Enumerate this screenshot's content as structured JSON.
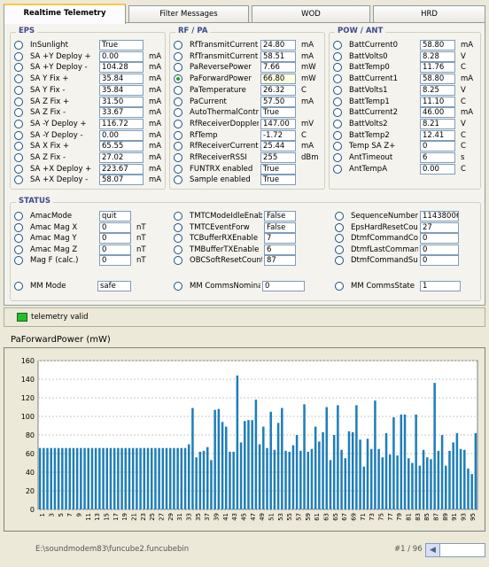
{
  "tabs": [
    {
      "label": "Realtime Telemetry",
      "active": true
    },
    {
      "label": "Filter Messages",
      "active": false
    },
    {
      "label": "WOD",
      "active": false
    },
    {
      "label": "HRD",
      "active": false
    }
  ],
  "eps": {
    "title": "EPS",
    "rows": [
      {
        "label": "InSunlight",
        "value": "True",
        "unit": ""
      },
      {
        "label": "SA +Y Deploy +",
        "value": "0.00",
        "unit": "mA"
      },
      {
        "label": "SA +Y Deploy -",
        "value": "104.28",
        "unit": "mA"
      },
      {
        "label": "SA Y Fix +",
        "value": "35.84",
        "unit": "mA"
      },
      {
        "label": "SA Y Fix -",
        "value": "35.84",
        "unit": "mA"
      },
      {
        "label": "SA Z Fix +",
        "value": "31.50",
        "unit": "mA"
      },
      {
        "label": "SA Z Fix -",
        "value": "33.67",
        "unit": "mA"
      },
      {
        "label": "SA -Y Deploy +",
        "value": "116.72",
        "unit": "mA"
      },
      {
        "label": "SA -Y Deploy -",
        "value": "0.00",
        "unit": "mA"
      },
      {
        "label": "SA X Fix +",
        "value": "65.55",
        "unit": "mA"
      },
      {
        "label": "SA Z Fix -",
        "value": "27.02",
        "unit": "mA"
      },
      {
        "label": "SA +X Deploy +",
        "value": "223.67",
        "unit": "mA"
      },
      {
        "label": "SA +X Deploy -",
        "value": "58.07",
        "unit": "mA"
      }
    ]
  },
  "rfpa": {
    "title": "RF / PA",
    "rows": [
      {
        "label": "RfTransmitCurrent3",
        "value": "24.80",
        "unit": "mA"
      },
      {
        "label": "RfTransmitCurrent5",
        "value": "58.51",
        "unit": "mA"
      },
      {
        "label": "PaReversePower",
        "value": "7.66",
        "unit": "mW"
      },
      {
        "label": "PaForwardPower",
        "value": "66.80",
        "unit": "mW",
        "selected": true
      },
      {
        "label": "PaTemperature",
        "value": "26.32",
        "unit": "C"
      },
      {
        "label": "PaCurrent",
        "value": "57.50",
        "unit": "mA"
      },
      {
        "label": "AutoThermalControl",
        "value": "True",
        "unit": ""
      },
      {
        "label": "RfReceiverDoppler",
        "value": "147.00",
        "unit": "mV"
      },
      {
        "label": "RfTemp",
        "value": "-1.72",
        "unit": "C"
      },
      {
        "label": "RfReceiverCurrent",
        "value": "25.44",
        "unit": "mA"
      },
      {
        "label": "RfReceiverRSSI",
        "value": "255",
        "unit": "dBm"
      },
      {
        "label": "FUNTRX enabled",
        "value": "True",
        "unit": ""
      },
      {
        "label": "Sample enabled",
        "value": "True",
        "unit": ""
      }
    ]
  },
  "powant": {
    "title": "POW / ANT",
    "rows": [
      {
        "label": "BattCurrent0",
        "value": "58.80",
        "unit": "mA"
      },
      {
        "label": "BattVolts0",
        "value": "8.28",
        "unit": "V"
      },
      {
        "label": "BattTemp0",
        "value": "11.76",
        "unit": "C"
      },
      {
        "label": "BattCurrent1",
        "value": "58.80",
        "unit": "mA"
      },
      {
        "label": "BattVolts1",
        "value": "8.25",
        "unit": "V"
      },
      {
        "label": "BattTemp1",
        "value": "11.10",
        "unit": "C"
      },
      {
        "label": "BattCurrent2",
        "value": "46.00",
        "unit": "mA"
      },
      {
        "label": "BattVolts2",
        "value": "8.21",
        "unit": "V"
      },
      {
        "label": "BattTemp2",
        "value": "12.41",
        "unit": "C"
      },
      {
        "label": "Temp SA Z+",
        "value": "0",
        "unit": "C"
      },
      {
        "label": "AntTimeout",
        "value": "6",
        "unit": "s"
      },
      {
        "label": "AntTempA",
        "value": "0.00",
        "unit": "C"
      }
    ]
  },
  "status": {
    "title": "STATUS",
    "col1": [
      {
        "label": "AmacMode",
        "value": "quit",
        "unit": ""
      },
      {
        "label": "Amac Mag X",
        "value": "0",
        "unit": "nT"
      },
      {
        "label": "Amac Mag Y",
        "value": "0",
        "unit": "nT"
      },
      {
        "label": "Amac Mag Z",
        "value": "0",
        "unit": "nT"
      },
      {
        "label": "Mag F (calc.)",
        "value": "0",
        "unit": "nT"
      }
    ],
    "col2": [
      {
        "label": "TMTCModeIdleEnab",
        "value": "False",
        "unit": ""
      },
      {
        "label": "TMTCEventForw",
        "value": "False",
        "unit": ""
      },
      {
        "label": "TCBufferRXEnable",
        "value": "7",
        "unit": ""
      },
      {
        "label": "TMBufferTXEnable",
        "value": "6",
        "unit": ""
      },
      {
        "label": "OBCSoftResetCount",
        "value": "87",
        "unit": ""
      }
    ],
    "col3": [
      {
        "label": "SequenceNumber",
        "value": "11438006",
        "unit": ""
      },
      {
        "label": "EpsHardResetCount",
        "value": "27",
        "unit": ""
      },
      {
        "label": "DtmfCommandCount",
        "value": "0",
        "unit": ""
      },
      {
        "label": "DtmfLastCommand",
        "value": "0",
        "unit": ""
      },
      {
        "label": "DtmfCommandSucce",
        "value": "0",
        "unit": ""
      }
    ],
    "mm": [
      {
        "label": "MM Mode",
        "value": "safe"
      },
      {
        "label": "MM CommsNominal",
        "value": "0"
      },
      {
        "label": "MM CommsState",
        "value": "1"
      }
    ]
  },
  "indicator": {
    "label": "telemetry valid",
    "color": "#22c02a"
  },
  "chart_title": "PaForwardPower (mW)",
  "chart_data": {
    "type": "bar",
    "title": "PaForwardPower (mW)",
    "ylim": [
      0,
      160
    ],
    "yticks": [
      0,
      20,
      40,
      60,
      80,
      100,
      120,
      140,
      160
    ],
    "color": "#1f7eb8",
    "grid": true,
    "x_labels": [
      "1",
      "3",
      "5",
      "7",
      "9",
      "11",
      "13",
      "15",
      "17",
      "19",
      "21",
      "23",
      "25",
      "27",
      "29",
      "31",
      "33",
      "35",
      "37",
      "39",
      "41",
      "43",
      "45",
      "47",
      "49",
      "51",
      "53",
      "55",
      "57",
      "59",
      "61",
      "63",
      "65",
      "67",
      "69",
      "71",
      "73",
      "75",
      "77",
      "79",
      "81",
      "83",
      "85",
      "87",
      "89",
      "91",
      "93",
      "95"
    ],
    "values": [
      66,
      66,
      66,
      66,
      66,
      66,
      66,
      66,
      66,
      66,
      66,
      66,
      66,
      66,
      66,
      66,
      66,
      66,
      66,
      66,
      66,
      66,
      66,
      66,
      66,
      66,
      66,
      66,
      66,
      66,
      66,
      66,
      66,
      66,
      66,
      66,
      66,
      66,
      66,
      66,
      70,
      109,
      56,
      62,
      63,
      67,
      53,
      107,
      108,
      94,
      89,
      62,
      62,
      144,
      72,
      95,
      96,
      96,
      118,
      70,
      89,
      66,
      105,
      64,
      93,
      109,
      63,
      62,
      69,
      80,
      63,
      113,
      62,
      65,
      89,
      73,
      83,
      110,
      53,
      80,
      112,
      64,
      55,
      84,
      83,
      112,
      75,
      46,
      76,
      65,
      117,
      65,
      56,
      82,
      59,
      99,
      58,
      102,
      102,
      55,
      50,
      102,
      47,
      64,
      56,
      54,
      136,
      63,
      80,
      47,
      63,
      72,
      82,
      65,
      64,
      44,
      38,
      82
    ]
  },
  "footer": {
    "path": "E:\\soundmodem83\\funcube2.funcubebin",
    "page": "#1 / 96"
  }
}
